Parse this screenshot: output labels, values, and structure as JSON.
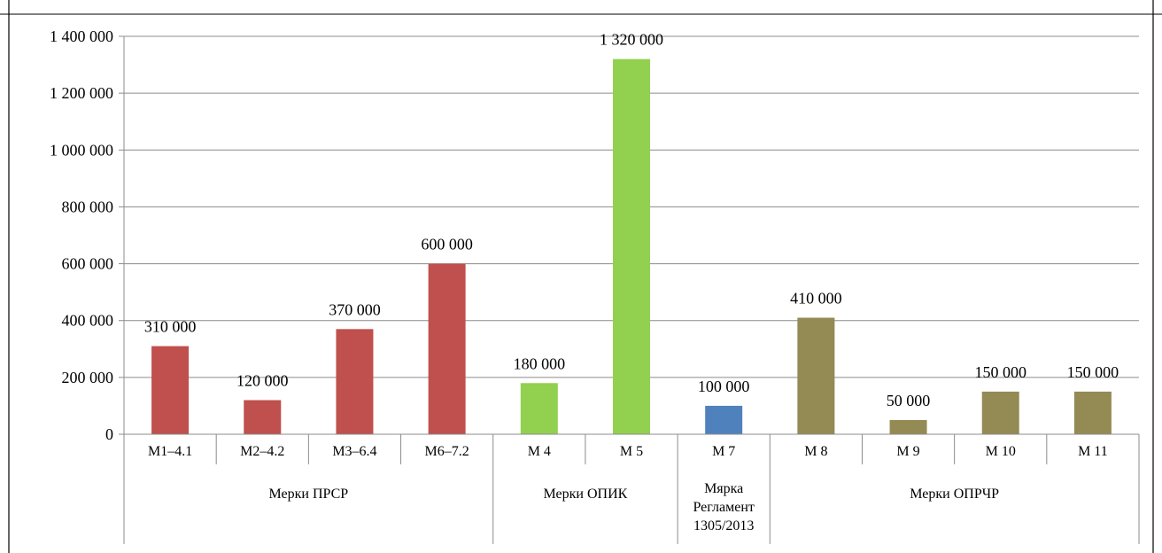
{
  "chart_data": {
    "type": "bar",
    "title": "",
    "xlabel": "",
    "ylabel": "",
    "ylim": [
      0,
      1400000
    ],
    "y_ticks": [
      0,
      200000,
      400000,
      600000,
      800000,
      1000000,
      1200000,
      1400000
    ],
    "y_tick_labels": [
      "0",
      "200 000",
      "400 000",
      "600 000",
      "800 000",
      "1 000 000",
      "1 200 000",
      "1 400 000"
    ],
    "grid": true,
    "categories": [
      "M1–4.1",
      "M2–4.2",
      "M3–6.4",
      "M6–7.2",
      "M 4",
      "M 5",
      "M 7",
      "M 8",
      "M 9",
      "M 10",
      "M 11"
    ],
    "values": [
      310000,
      120000,
      370000,
      600000,
      180000,
      1320000,
      100000,
      410000,
      50000,
      150000,
      150000
    ],
    "data_labels": [
      "310 000",
      "120 000",
      "370 000",
      "600 000",
      "180 000",
      "1 320 000",
      "100 000",
      "410 000",
      "50 000",
      "150 000",
      "150 000"
    ],
    "groups": [
      {
        "label_lines": [
          "Мерки ПРСР"
        ],
        "start": 0,
        "end": 3,
        "color": "#C0504D"
      },
      {
        "label_lines": [
          "Мерки ОПИК"
        ],
        "start": 4,
        "end": 5,
        "color": "#92D050"
      },
      {
        "label_lines": [
          "Мярка",
          "Регламент",
          "1305/2013"
        ],
        "start": 6,
        "end": 6,
        "color": "#4F81BD"
      },
      {
        "label_lines": [
          "Мерки ОПРЧР"
        ],
        "start": 7,
        "end": 10,
        "color": "#948A54"
      }
    ],
    "colors": {
      "grid": "#8c8c8c",
      "axis": "#8c8c8c",
      "frame": "#000000"
    }
  }
}
